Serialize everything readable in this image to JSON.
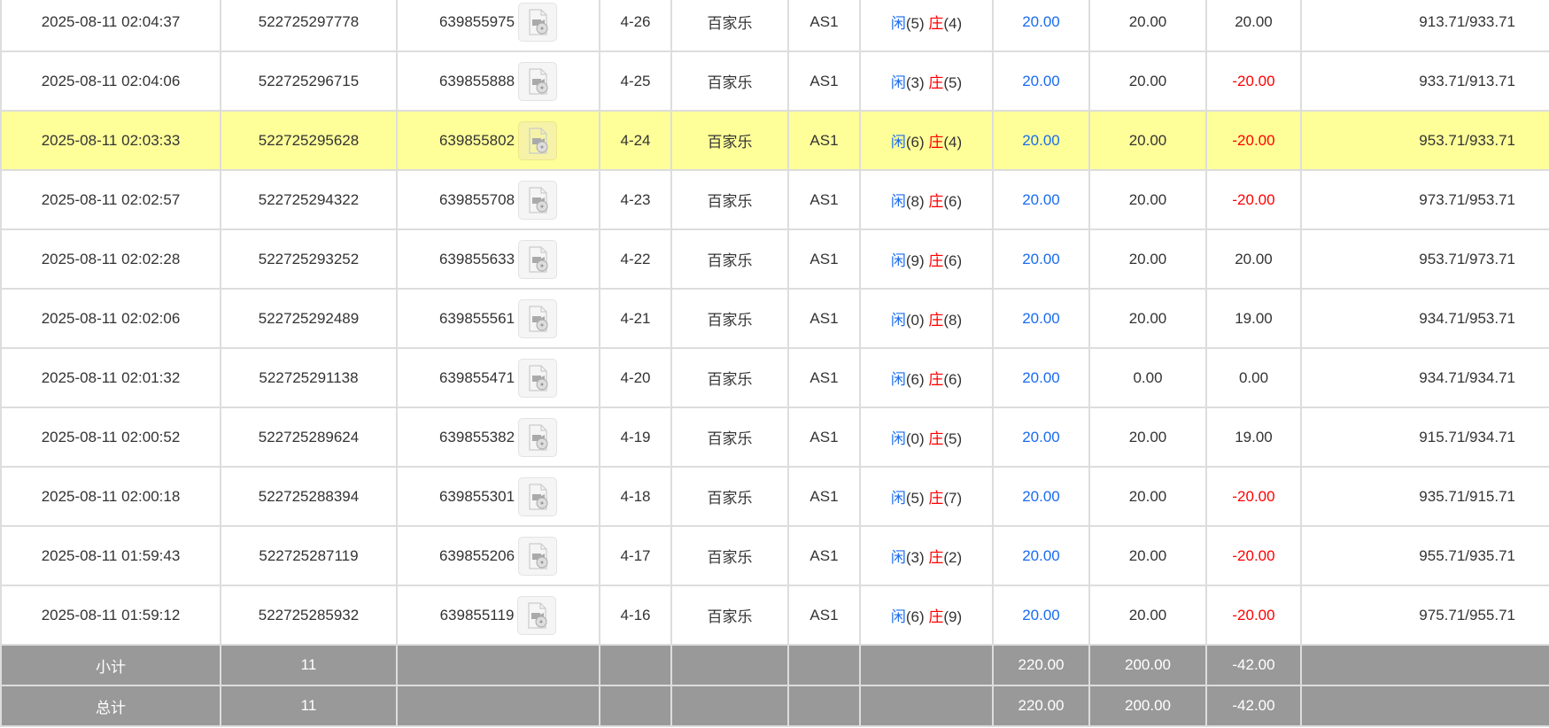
{
  "colors": {
    "player": "#1a6cf0",
    "banker": "#ff0000",
    "negative": "#ff0000",
    "highlight": "#ffff99",
    "summary_bg": "#999999"
  },
  "rows": [
    {
      "time": "2025-08-11 02:04:37",
      "bet_id": "522725297778",
      "round_id": "639855975",
      "shoe": "4-26",
      "game": "百家乐",
      "table": "AS1",
      "player_label": "闲",
      "player": "(5)",
      "banker_label": "庄",
      "banker": "(4)",
      "bet": "20.00",
      "valid": "20.00",
      "win": "20.00",
      "win_neg": false,
      "balance": "913.71/933.71",
      "highlight": false
    },
    {
      "time": "2025-08-11 02:04:06",
      "bet_id": "522725296715",
      "round_id": "639855888",
      "shoe": "4-25",
      "game": "百家乐",
      "table": "AS1",
      "player_label": "闲",
      "player": "(3)",
      "banker_label": "庄",
      "banker": "(5)",
      "bet": "20.00",
      "valid": "20.00",
      "win": "-20.00",
      "win_neg": true,
      "balance": "933.71/913.71",
      "highlight": false
    },
    {
      "time": "2025-08-11 02:03:33",
      "bet_id": "522725295628",
      "round_id": "639855802",
      "shoe": "4-24",
      "game": "百家乐",
      "table": "AS1",
      "player_label": "闲",
      "player": "(6)",
      "banker_label": "庄",
      "banker": "(4)",
      "bet": "20.00",
      "valid": "20.00",
      "win": "-20.00",
      "win_neg": true,
      "balance": "953.71/933.71",
      "highlight": true
    },
    {
      "time": "2025-08-11 02:02:57",
      "bet_id": "522725294322",
      "round_id": "639855708",
      "shoe": "4-23",
      "game": "百家乐",
      "table": "AS1",
      "player_label": "闲",
      "player": "(8)",
      "banker_label": "庄",
      "banker": "(6)",
      "bet": "20.00",
      "valid": "20.00",
      "win": "-20.00",
      "win_neg": true,
      "balance": "973.71/953.71",
      "highlight": false
    },
    {
      "time": "2025-08-11 02:02:28",
      "bet_id": "522725293252",
      "round_id": "639855633",
      "shoe": "4-22",
      "game": "百家乐",
      "table": "AS1",
      "player_label": "闲",
      "player": "(9)",
      "banker_label": "庄",
      "banker": "(6)",
      "bet": "20.00",
      "valid": "20.00",
      "win": "20.00",
      "win_neg": false,
      "balance": "953.71/973.71",
      "highlight": false
    },
    {
      "time": "2025-08-11 02:02:06",
      "bet_id": "522725292489",
      "round_id": "639855561",
      "shoe": "4-21",
      "game": "百家乐",
      "table": "AS1",
      "player_label": "闲",
      "player": "(0)",
      "banker_label": "庄",
      "banker": "(8)",
      "bet": "20.00",
      "valid": "20.00",
      "win": "19.00",
      "win_neg": false,
      "balance": "934.71/953.71",
      "highlight": false
    },
    {
      "time": "2025-08-11 02:01:32",
      "bet_id": "522725291138",
      "round_id": "639855471",
      "shoe": "4-20",
      "game": "百家乐",
      "table": "AS1",
      "player_label": "闲",
      "player": "(6)",
      "banker_label": "庄",
      "banker": "(6)",
      "bet": "20.00",
      "valid": "0.00",
      "win": "0.00",
      "win_neg": false,
      "balance": "934.71/934.71",
      "highlight": false
    },
    {
      "time": "2025-08-11 02:00:52",
      "bet_id": "522725289624",
      "round_id": "639855382",
      "shoe": "4-19",
      "game": "百家乐",
      "table": "AS1",
      "player_label": "闲",
      "player": "(0)",
      "banker_label": "庄",
      "banker": "(5)",
      "bet": "20.00",
      "valid": "20.00",
      "win": "19.00",
      "win_neg": false,
      "balance": "915.71/934.71",
      "highlight": false
    },
    {
      "time": "2025-08-11 02:00:18",
      "bet_id": "522725288394",
      "round_id": "639855301",
      "shoe": "4-18",
      "game": "百家乐",
      "table": "AS1",
      "player_label": "闲",
      "player": "(5)",
      "banker_label": "庄",
      "banker": "(7)",
      "bet": "20.00",
      "valid": "20.00",
      "win": "-20.00",
      "win_neg": true,
      "balance": "935.71/915.71",
      "highlight": false
    },
    {
      "time": "2025-08-11 01:59:43",
      "bet_id": "522725287119",
      "round_id": "639855206",
      "shoe": "4-17",
      "game": "百家乐",
      "table": "AS1",
      "player_label": "闲",
      "player": "(3)",
      "banker_label": "庄",
      "banker": "(2)",
      "bet": "20.00",
      "valid": "20.00",
      "win": "-20.00",
      "win_neg": true,
      "balance": "955.71/935.71",
      "highlight": false
    },
    {
      "time": "2025-08-11 01:59:12",
      "bet_id": "522725285932",
      "round_id": "639855119",
      "shoe": "4-16",
      "game": "百家乐",
      "table": "AS1",
      "player_label": "闲",
      "player": "(6)",
      "banker_label": "庄",
      "banker": "(9)",
      "bet": "20.00",
      "valid": "20.00",
      "win": "-20.00",
      "win_neg": true,
      "balance": "975.71/955.71",
      "highlight": false
    }
  ],
  "summary": [
    {
      "label": "小计",
      "count": "11",
      "bet": "220.00",
      "valid": "200.00",
      "win": "-42.00"
    },
    {
      "label": "总计",
      "count": "11",
      "bet": "220.00",
      "valid": "200.00",
      "win": "-42.00"
    }
  ]
}
